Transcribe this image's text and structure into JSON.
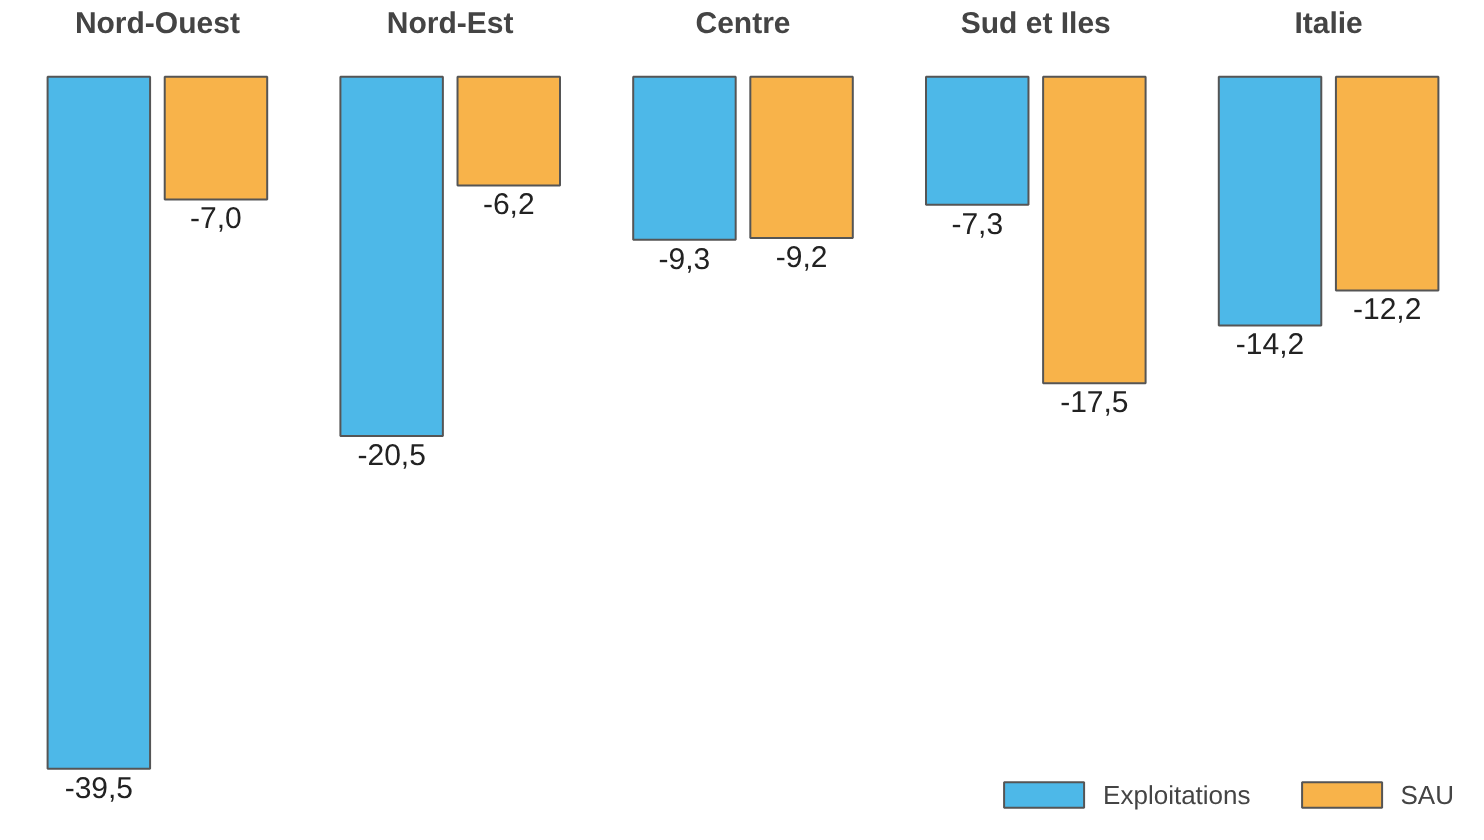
{
  "chart_data": {
    "type": "bar",
    "categories": [
      "Nord-Ouest",
      "Nord-Est",
      "Centre",
      "Sud et Iles",
      "Italie"
    ],
    "series": [
      {
        "name": "Exploitations",
        "color": "#4db8e8",
        "values": [
          -39.5,
          -20.5,
          -9.3,
          -7.3,
          -14.2
        ],
        "value_labels": [
          "-39,5",
          "-20,5",
          "-9,3",
          "-7,3",
          "-14,2"
        ]
      },
      {
        "name": "SAU",
        "color": "#f8b34a",
        "values": [
          -7.0,
          -6.2,
          -9.2,
          -17.5,
          -12.2
        ],
        "value_labels": [
          "-7,0",
          "-6,2",
          "-9,2",
          "-17,5",
          "-12,2"
        ]
      }
    ],
    "legend": "bottom right"
  }
}
